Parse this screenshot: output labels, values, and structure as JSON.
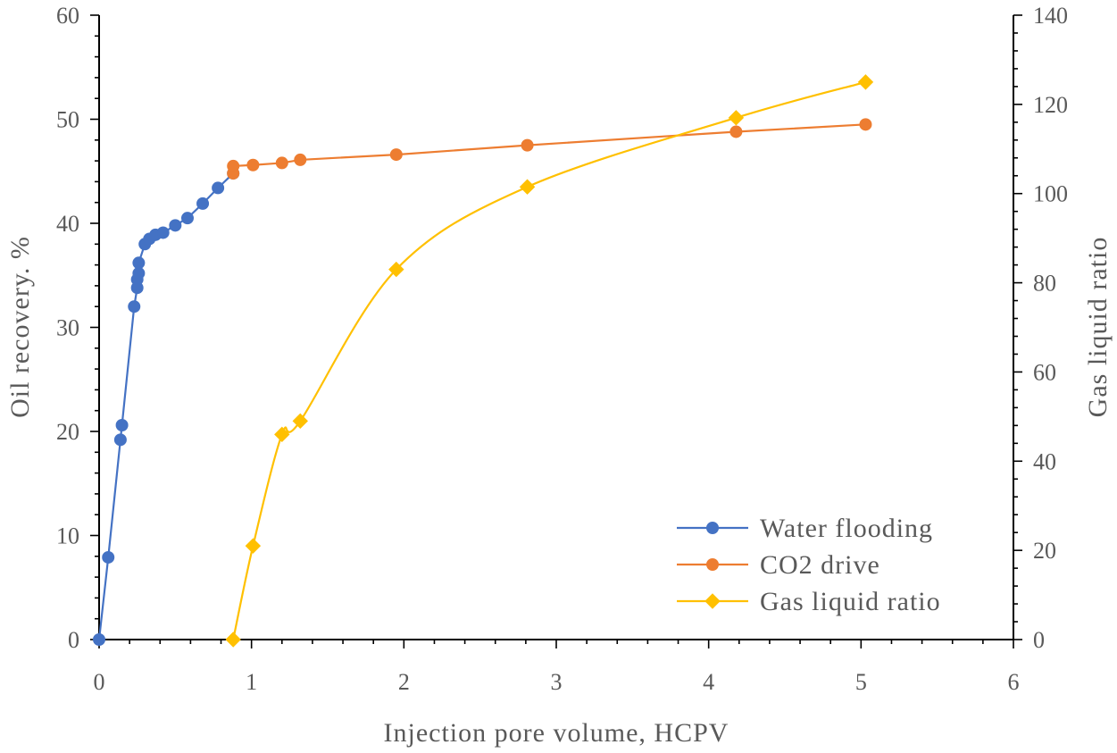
{
  "chart_data": {
    "type": "line",
    "xlabel": "Injection pore volume, HCPV",
    "ylabel": "Oil recovery. %",
    "y2label": "Gas liquid ratio",
    "xlim": [
      0,
      6
    ],
    "ylim": [
      0,
      60
    ],
    "y2lim": [
      0,
      140
    ],
    "x_ticks": [
      0,
      1,
      2,
      3,
      4,
      5,
      6
    ],
    "y_ticks": [
      0,
      10,
      20,
      30,
      40,
      50,
      60
    ],
    "y2_ticks": [
      0,
      20,
      40,
      60,
      80,
      100,
      120,
      140
    ],
    "grid": false,
    "legend_position": "bottom-right",
    "series": [
      {
        "name": "Water flooding",
        "axis": "left",
        "color": "#4472C4",
        "marker": "circle",
        "smooth": false,
        "x": [
          0,
          0.06,
          0.14,
          0.15,
          0.23,
          0.25,
          0.25,
          0.26,
          0.26,
          0.3,
          0.33,
          0.37,
          0.42,
          0.5,
          0.58,
          0.68,
          0.78,
          0.88
        ],
        "y": [
          0,
          7.9,
          19.2,
          20.6,
          32.0,
          33.8,
          34.6,
          35.2,
          36.2,
          38.0,
          38.5,
          38.9,
          39.1,
          39.8,
          40.5,
          41.9,
          43.4,
          44.8
        ]
      },
      {
        "name": "CO2 drive",
        "axis": "left",
        "color": "#ED7D31",
        "marker": "circle",
        "smooth": false,
        "x": [
          0.88,
          0.88,
          1.01,
          1.2,
          1.32,
          1.95,
          2.81,
          4.18,
          5.03
        ],
        "y": [
          44.8,
          45.5,
          45.6,
          45.8,
          46.1,
          46.6,
          47.5,
          48.8,
          49.5
        ]
      },
      {
        "name": "Gas liquid ratio",
        "axis": "right",
        "color": "#FFC000",
        "marker": "diamond",
        "smooth": true,
        "x": [
          0.88,
          1.01,
          1.2,
          1.32,
          1.95,
          2.81,
          4.18,
          5.03
        ],
        "y": [
          0,
          21,
          46,
          49,
          83,
          101.5,
          117,
          125
        ]
      }
    ]
  }
}
